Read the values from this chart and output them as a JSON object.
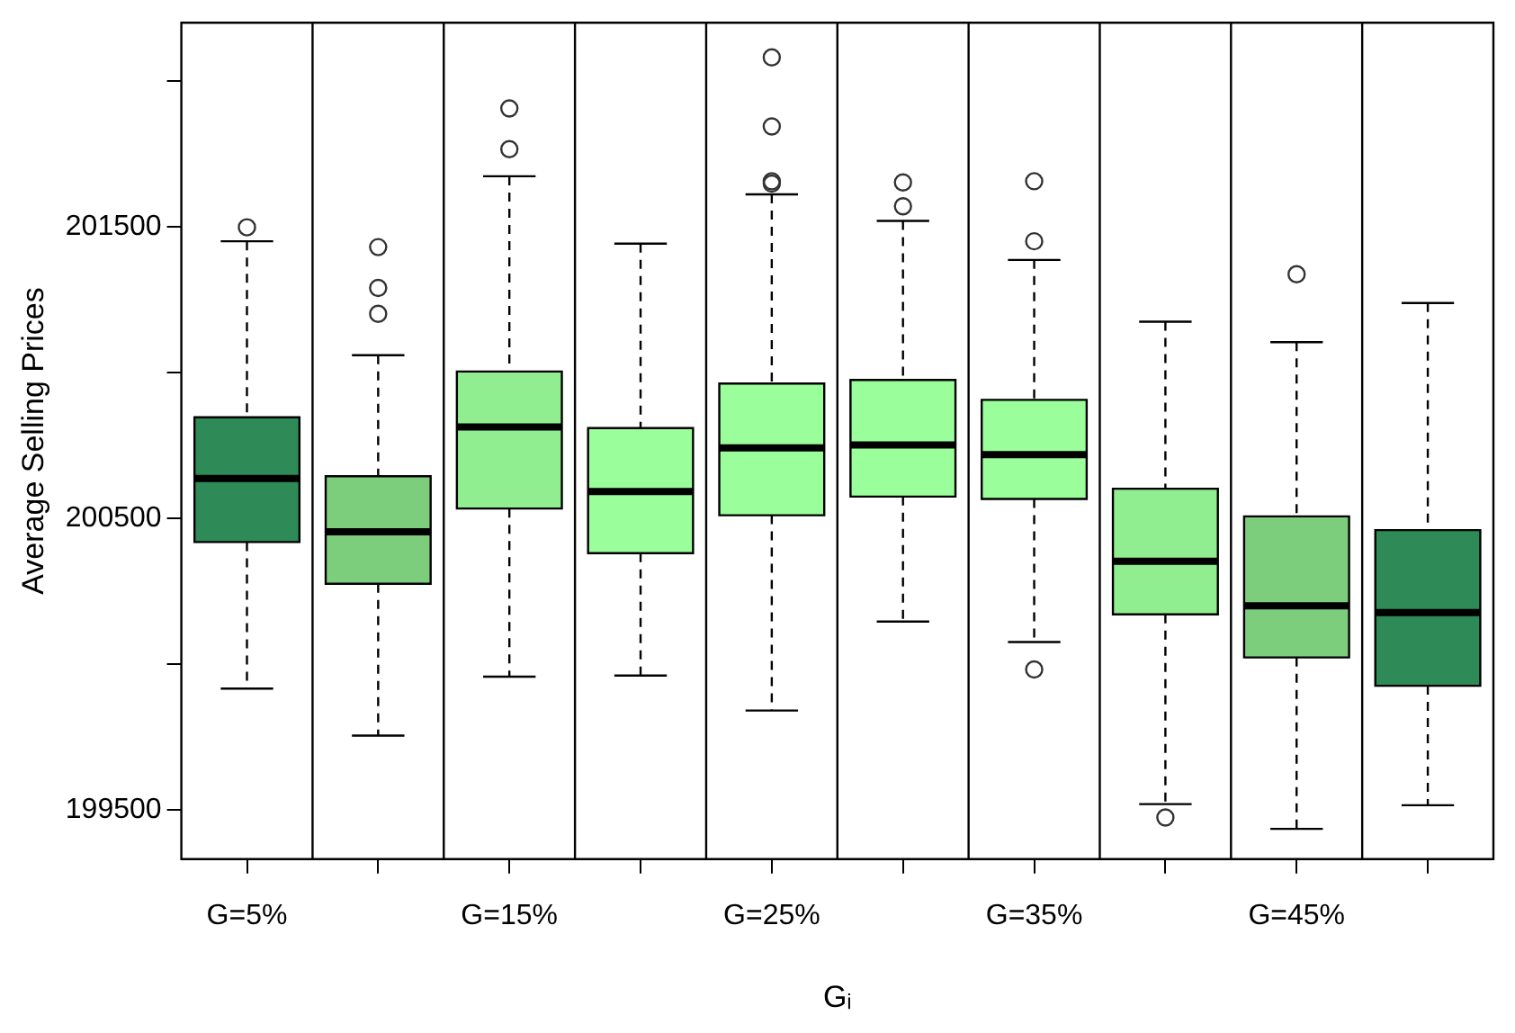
{
  "chart_data": {
    "type": "box",
    "xlabel": "Gᵢ",
    "ylabel": "Average Selling Prices",
    "categories": [
      "G=5%",
      null,
      "G=15%",
      null,
      "G=25%",
      null,
      "G=35%",
      null,
      "G=45%",
      null
    ],
    "colors": [
      "#2e8b57",
      "#7ccd7c",
      "#90ee90",
      "#9aff9a",
      "#9aff9a",
      "#9aff9a",
      "#9aff9a",
      "#90ee90",
      "#7ccd7c",
      "#2e8b57"
    ],
    "boxes": [
      {
        "low": 199915,
        "q1": 200418,
        "median": 200636,
        "q3": 200846,
        "high": 201450,
        "outliers": [
          201498
        ]
      },
      {
        "low": 199754,
        "q1": 200275,
        "median": 200453,
        "q3": 200644,
        "high": 201059,
        "outliers": [
          201430,
          201290,
          201201
        ]
      },
      {
        "low": 199956,
        "q1": 200533,
        "median": 200813,
        "q3": 201003,
        "high": 201673,
        "outliers": [
          201906,
          201766
        ]
      },
      {
        "low": 199960,
        "q1": 200380,
        "median": 200591,
        "q3": 200809,
        "high": 201442
      },
      {
        "low": 199840,
        "q1": 200510,
        "median": 200741,
        "q3": 200962,
        "high": 201611,
        "outliers": [
          202081,
          201844,
          201656,
          201648
        ]
      },
      {
        "low": 200145,
        "q1": 200574,
        "median": 200751,
        "q3": 200974,
        "high": 201520,
        "outliers": [
          201570,
          201652
        ]
      },
      {
        "low": 200075,
        "q1": 200566,
        "median": 200718,
        "q3": 200906,
        "high": 201386,
        "outliers": [
          201656,
          201450,
          199981
        ]
      },
      {
        "low": 199519,
        "q1": 200170,
        "median": 200352,
        "q3": 200601,
        "high": 201174,
        "outliers": [
          199473
        ]
      },
      {
        "low": 199434,
        "q1": 200022,
        "median": 200199,
        "q3": 200506,
        "high": 201104,
        "outliers": [
          201337
        ]
      },
      {
        "low": 199515,
        "q1": 199925,
        "median": 200176,
        "q3": 200459,
        "high": 201238
      }
    ],
    "ylim": [
      199330,
      202200
    ],
    "yticks": [
      199500,
      {
        "value": 200000,
        "label": null
      },
      200500,
      {
        "value": 201000,
        "label": null
      },
      201500,
      {
        "value": 202000,
        "label": null
      }
    ],
    "grid": "x",
    "line_style": "dashed",
    "marker": "circle",
    "legend": false
  }
}
